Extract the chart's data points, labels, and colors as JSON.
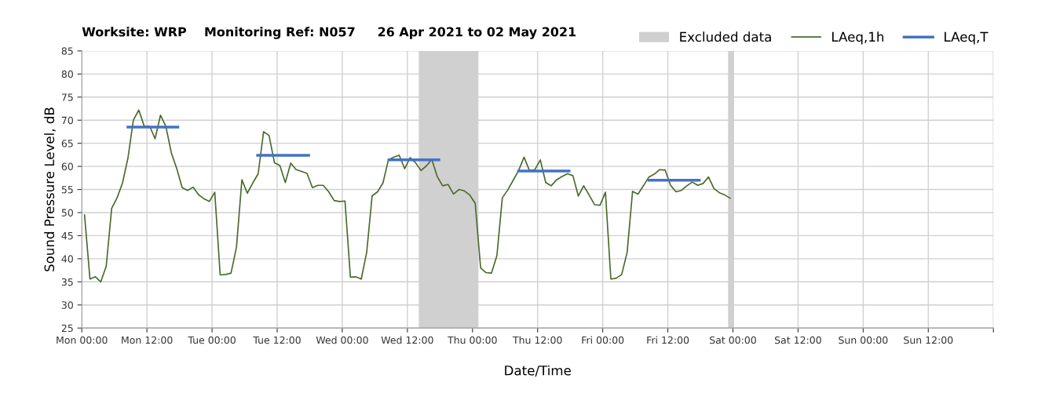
{
  "chart_data": {
    "type": "line",
    "title": "Worksite: WRP    Monitoring Ref: N057     26 Apr 2021 to 02 May 2021",
    "xlabel": "Date/Time",
    "ylabel": "Sound Pressure Level, dB",
    "xlim": [
      "2021-04-26T00:00",
      "2021-05-03T00:00"
    ],
    "ylim": [
      25,
      85
    ],
    "xticks": [
      {
        "value": "2021-04-26T00:00",
        "label": "Mon 00:00"
      },
      {
        "value": "2021-04-26T12:00",
        "label": "Mon 12:00"
      },
      {
        "value": "2021-04-27T00:00",
        "label": "Tue 00:00"
      },
      {
        "value": "2021-04-27T12:00",
        "label": "Tue 12:00"
      },
      {
        "value": "2021-04-28T00:00",
        "label": "Wed 00:00"
      },
      {
        "value": "2021-04-28T12:00",
        "label": "Wed 12:00"
      },
      {
        "value": "2021-04-29T00:00",
        "label": "Thu 00:00"
      },
      {
        "value": "2021-04-29T12:00",
        "label": "Thu 12:00"
      },
      {
        "value": "2021-04-30T00:00",
        "label": "Fri 00:00"
      },
      {
        "value": "2021-04-30T12:00",
        "label": "Fri 12:00"
      },
      {
        "value": "2021-05-01T00:00",
        "label": "Sat 00:00"
      },
      {
        "value": "2021-05-01T12:00",
        "label": "Sat 12:00"
      },
      {
        "value": "2021-05-02T00:00",
        "label": "Sun 00:00"
      },
      {
        "value": "2021-05-02T12:00",
        "label": "Sun 12:00"
      },
      {
        "value": "2021-05-03T00:00",
        "label": null
      }
    ],
    "yticks": [
      25,
      30,
      35,
      40,
      45,
      50,
      55,
      60,
      65,
      70,
      75,
      80,
      85
    ],
    "grid": true,
    "legend": "top right",
    "bands": [
      {
        "axis": "x",
        "from": "2021-04-28T14:06",
        "to": "2021-04-29T01:06",
        "label": "Excluded data",
        "color": "#d0d0d0"
      },
      {
        "axis": "x",
        "from": "2021-04-30T23:06",
        "to": "2021-05-01T00:12",
        "color": "#d0d0d0"
      }
    ],
    "series": [
      {
        "name": "LAeq,1h",
        "color": "#4a6a2c",
        "x": [
          "2021-04-26T00:30",
          "2021-04-26T01:30",
          "2021-04-26T02:30",
          "2021-04-26T03:30",
          "2021-04-26T04:30",
          "2021-04-26T05:30",
          "2021-04-26T06:30",
          "2021-04-26T07:30",
          "2021-04-26T08:30",
          "2021-04-26T09:30",
          "2021-04-26T10:30",
          "2021-04-26T11:30",
          "2021-04-26T12:30",
          "2021-04-26T13:30",
          "2021-04-26T14:30",
          "2021-04-26T15:30",
          "2021-04-26T16:30",
          "2021-04-26T17:30",
          "2021-04-26T18:30",
          "2021-04-26T19:30",
          "2021-04-26T20:30",
          "2021-04-26T21:30",
          "2021-04-26T22:30",
          "2021-04-26T23:30",
          "2021-04-27T00:30",
          "2021-04-27T01:30",
          "2021-04-27T02:30",
          "2021-04-27T03:30",
          "2021-04-27T04:30",
          "2021-04-27T05:30",
          "2021-04-27T06:30",
          "2021-04-27T07:30",
          "2021-04-27T08:30",
          "2021-04-27T09:30",
          "2021-04-27T10:30",
          "2021-04-27T11:30",
          "2021-04-27T12:30",
          "2021-04-27T13:30",
          "2021-04-27T14:30",
          "2021-04-27T15:30",
          "2021-04-27T16:30",
          "2021-04-27T17:30",
          "2021-04-27T18:30",
          "2021-04-27T19:30",
          "2021-04-27T20:30",
          "2021-04-27T21:30",
          "2021-04-27T22:30",
          "2021-04-27T23:30",
          "2021-04-28T00:30",
          "2021-04-28T01:30",
          "2021-04-28T02:30",
          "2021-04-28T03:30",
          "2021-04-28T04:30",
          "2021-04-28T05:30",
          "2021-04-28T06:30",
          "2021-04-28T07:30",
          "2021-04-28T08:30",
          "2021-04-28T09:30",
          "2021-04-28T10:30",
          "2021-04-28T11:30",
          "2021-04-28T12:30",
          "2021-04-28T13:30",
          "2021-04-28T14:30",
          "2021-04-28T15:30",
          "2021-04-28T16:30",
          "2021-04-28T17:30",
          "2021-04-28T18:30",
          "2021-04-28T19:30",
          "2021-04-28T20:30",
          "2021-04-28T21:30",
          "2021-04-28T22:30",
          "2021-04-28T23:30",
          "2021-04-29T00:30",
          "2021-04-29T01:30",
          "2021-04-29T02:30",
          "2021-04-29T03:30",
          "2021-04-29T04:30",
          "2021-04-29T05:30",
          "2021-04-29T06:30",
          "2021-04-29T07:30",
          "2021-04-29T08:30",
          "2021-04-29T09:30",
          "2021-04-29T10:30",
          "2021-04-29T11:30",
          "2021-04-29T12:30",
          "2021-04-29T13:30",
          "2021-04-29T14:30",
          "2021-04-29T15:30",
          "2021-04-29T16:30",
          "2021-04-29T17:30",
          "2021-04-29T18:30",
          "2021-04-29T19:30",
          "2021-04-29T20:30",
          "2021-04-29T21:30",
          "2021-04-29T22:30",
          "2021-04-29T23:30",
          "2021-04-30T00:30",
          "2021-04-30T01:30",
          "2021-04-30T02:30",
          "2021-04-30T03:30",
          "2021-04-30T04:30",
          "2021-04-30T05:30",
          "2021-04-30T06:30",
          "2021-04-30T07:30",
          "2021-04-30T08:30",
          "2021-04-30T09:30",
          "2021-04-30T10:30",
          "2021-04-30T11:30",
          "2021-04-30T12:30",
          "2021-04-30T13:30",
          "2021-04-30T14:30",
          "2021-04-30T15:30",
          "2021-04-30T16:30",
          "2021-04-30T17:30",
          "2021-04-30T18:30",
          "2021-04-30T19:30",
          "2021-04-30T20:30",
          "2021-04-30T21:30",
          "2021-04-30T22:30",
          "2021-04-30T23:30"
        ],
        "values": [
          49.5,
          35.6,
          36.1,
          35.0,
          38.4,
          50.9,
          53.2,
          56.4,
          61.8,
          70.0,
          72.2,
          68.7,
          68.7,
          66.0,
          71.1,
          68.6,
          62.9,
          59.5,
          55.4,
          54.8,
          55.5,
          53.9,
          53.0,
          52.4,
          54.4,
          36.5,
          36.6,
          36.9,
          42.5,
          57.1,
          54.2,
          56.4,
          58.4,
          67.5,
          66.7,
          60.8,
          60.2,
          56.5,
          60.7,
          59.3,
          58.9,
          58.5,
          55.4,
          55.9,
          55.9,
          54.5,
          52.6,
          52.4,
          52.5,
          36.0,
          36.1,
          35.6,
          41.4,
          53.6,
          54.5,
          56.4,
          61.4,
          62.0,
          62.4,
          59.5,
          61.9,
          60.8,
          59.1,
          60.1,
          61.5,
          57.8,
          55.8,
          56.1,
          54.0,
          55.0,
          54.7,
          53.8,
          52.0,
          38.0,
          37.0,
          36.9,
          40.7,
          53.2,
          54.9,
          57.0,
          59.1,
          62.0,
          59.1,
          59.3,
          61.4,
          56.5,
          55.8,
          57.1,
          57.8,
          58.4,
          58.0,
          53.6,
          55.8,
          53.8,
          51.7,
          51.6,
          54.4,
          35.6,
          35.8,
          36.6,
          41.4,
          54.6,
          54.0,
          55.8,
          57.7,
          58.3,
          59.3,
          59.2,
          55.9,
          54.5,
          54.8,
          55.8,
          56.6,
          55.9,
          56.3,
          57.7,
          55.2,
          54.3,
          53.8,
          53.1
        ]
      },
      {
        "name": "LAeq,T",
        "color": "#4472c4",
        "x": [
          "2021-04-26T08:30",
          "2021-04-26T17:42",
          "2021-04-27T01:00",
          "2021-04-27T08:24",
          "2021-04-27T17:48",
          "2021-04-28T01:00",
          "2021-04-28T08:36",
          "2021-04-28T17:48",
          "2021-04-29T01:00",
          "2021-04-29T08:30",
          "2021-04-29T17:48",
          "2021-04-30T01:00",
          "2021-04-30T08:30",
          "2021-04-30T17:48"
        ],
        "values": [
          68.5,
          68.5,
          null,
          62.4,
          62.4,
          null,
          61.4,
          61.4,
          null,
          59.0,
          59.0,
          null,
          57.0,
          57.0
        ]
      }
    ]
  }
}
